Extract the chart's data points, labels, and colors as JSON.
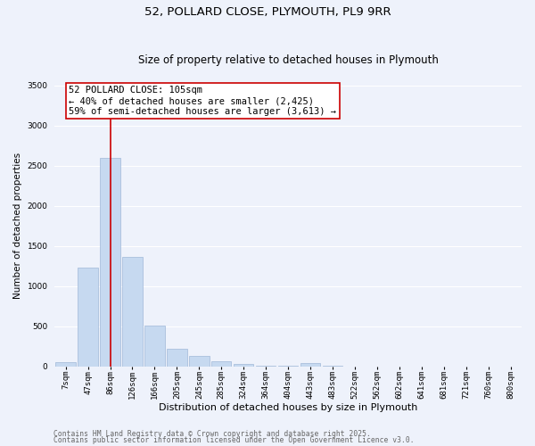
{
  "title1": "52, POLLARD CLOSE, PLYMOUTH, PL9 9RR",
  "title2": "Size of property relative to detached houses in Plymouth",
  "xlabel": "Distribution of detached houses by size in Plymouth",
  "ylabel": "Number of detached properties",
  "categories": [
    "7sqm",
    "47sqm",
    "86sqm",
    "126sqm",
    "166sqm",
    "205sqm",
    "245sqm",
    "285sqm",
    "324sqm",
    "364sqm",
    "404sqm",
    "443sqm",
    "483sqm",
    "522sqm",
    "562sqm",
    "602sqm",
    "641sqm",
    "681sqm",
    "721sqm",
    "760sqm",
    "800sqm"
  ],
  "values": [
    50,
    1230,
    2590,
    1360,
    510,
    220,
    130,
    60,
    30,
    10,
    5,
    35,
    3,
    0,
    0,
    0,
    0,
    0,
    0,
    0,
    0
  ],
  "bar_color": "#c6d9f0",
  "bar_edge_color": "#a0b8d8",
  "vline_x_index": 2,
  "vline_color": "#cc0000",
  "annotation_text": "52 POLLARD CLOSE: 105sqm\n← 40% of detached houses are smaller (2,425)\n59% of semi-detached houses are larger (3,613) →",
  "annotation_box_color": "#ffffff",
  "annotation_box_edge": "#cc0000",
  "ylim": [
    0,
    3500
  ],
  "yticks": [
    0,
    500,
    1000,
    1500,
    2000,
    2500,
    3000,
    3500
  ],
  "footnote1": "Contains HM Land Registry data © Crown copyright and database right 2025.",
  "footnote2": "Contains public sector information licensed under the Open Government Licence v3.0.",
  "bg_color": "#eef2fb",
  "grid_color": "#ffffff",
  "title_fontsize": 9.5,
  "subtitle_fontsize": 8.5,
  "tick_fontsize": 6.5,
  "axis_label_fontsize": 8,
  "annotation_fontsize": 7.5,
  "footnote_fontsize": 5.8,
  "ylabel_fontsize": 7.5
}
